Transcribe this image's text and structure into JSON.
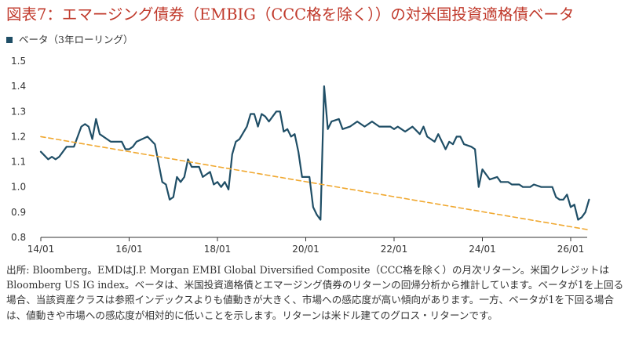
{
  "title": "図表7：エマージング債券（EMBIG（CCC格を除く））の対米国投資適格債ベータ",
  "legend": {
    "label": "ベータ（3年ローリング）",
    "color": "#1f4e66"
  },
  "footnote": "出所: Bloomberg。EMDはJ.P. Morgan EMBI Global Diversified Composite（CCC格を除く）の月次リターン。米国クレジットはBloomberg US IG index。ベータは、米国投資適格債とエマージング債券のリターンの回帰分析から推計しています。ベータが1を上回る場合、当該資産クラスは参照インデックスよりも値動きが大きく、市場への感応度が高い傾向があります。一方、ベータが1を下回る場合は、値動きや市場への感応度が相対的に低いことを示します。リターンは米ドル建てのグロス・リターンです。",
  "chart_data": {
    "type": "line",
    "xlabel": "",
    "ylabel": "",
    "x_range": [
      "2014-01",
      "2026-01"
    ],
    "ylim": [
      0.8,
      1.5
    ],
    "yticks": [
      "1.5",
      "1.4",
      "1.3",
      "1.2",
      "1.1",
      "1.0",
      "0.9",
      "0.8"
    ],
    "yticks_values": [
      1.5,
      1.4,
      1.3,
      1.2,
      1.1,
      1.0,
      0.9,
      0.8
    ],
    "xticks": [
      "14/01",
      "16/01",
      "18/01",
      "20/01",
      "22/01",
      "24/01",
      "26/01"
    ],
    "xticks_dates": [
      "2014-01",
      "2016-01",
      "2018-01",
      "2020-01",
      "2022-01",
      "2024-01",
      "2026-01"
    ],
    "grid": false,
    "series": [
      {
        "name": "ベータ（3年ローリング）",
        "color": "#1f4e66",
        "style": "solid",
        "points": [
          [
            "2014-01",
            1.14
          ],
          [
            "2014-03",
            1.11
          ],
          [
            "2014-04",
            1.12
          ],
          [
            "2014-05",
            1.11
          ],
          [
            "2014-06",
            1.12
          ],
          [
            "2014-08",
            1.16
          ],
          [
            "2014-10",
            1.16
          ],
          [
            "2014-12",
            1.24
          ],
          [
            "2015-01",
            1.25
          ],
          [
            "2015-02",
            1.24
          ],
          [
            "2015-03",
            1.19
          ],
          [
            "2015-04",
            1.27
          ],
          [
            "2015-05",
            1.21
          ],
          [
            "2015-08",
            1.18
          ],
          [
            "2015-11",
            1.18
          ],
          [
            "2015-12",
            1.15
          ],
          [
            "2016-01",
            1.15
          ],
          [
            "2016-02",
            1.16
          ],
          [
            "2016-03",
            1.18
          ],
          [
            "2016-06",
            1.2
          ],
          [
            "2016-08",
            1.17
          ],
          [
            "2016-10",
            1.02
          ],
          [
            "2016-11",
            1.01
          ],
          [
            "2016-12",
            0.95
          ],
          [
            "2017-01",
            0.96
          ],
          [
            "2017-02",
            1.04
          ],
          [
            "2017-03",
            1.02
          ],
          [
            "2017-04",
            1.04
          ],
          [
            "2017-05",
            1.11
          ],
          [
            "2017-06",
            1.08
          ],
          [
            "2017-08",
            1.08
          ],
          [
            "2017-09",
            1.04
          ],
          [
            "2017-11",
            1.06
          ],
          [
            "2017-12",
            1.01
          ],
          [
            "2018-01",
            1.02
          ],
          [
            "2018-02",
            1.0
          ],
          [
            "2018-03",
            1.02
          ],
          [
            "2018-04",
            0.99
          ],
          [
            "2018-05",
            1.13
          ],
          [
            "2018-06",
            1.18
          ],
          [
            "2018-07",
            1.19
          ],
          [
            "2018-09",
            1.24
          ],
          [
            "2018-10",
            1.29
          ],
          [
            "2018-11",
            1.29
          ],
          [
            "2018-12",
            1.24
          ],
          [
            "2019-01",
            1.29
          ],
          [
            "2019-02",
            1.28
          ],
          [
            "2019-03",
            1.26
          ],
          [
            "2019-05",
            1.3
          ],
          [
            "2019-06",
            1.3
          ],
          [
            "2019-07",
            1.22
          ],
          [
            "2019-08",
            1.23
          ],
          [
            "2019-09",
            1.2
          ],
          [
            "2019-10",
            1.21
          ],
          [
            "2019-11",
            1.14
          ],
          [
            "2019-12",
            1.04
          ],
          [
            "2020-01",
            1.04
          ],
          [
            "2020-02",
            1.04
          ],
          [
            "2020-03",
            0.92
          ],
          [
            "2020-04",
            0.89
          ],
          [
            "2020-05",
            0.87
          ],
          [
            "2020-06",
            1.4
          ],
          [
            "2020-07",
            1.23
          ],
          [
            "2020-08",
            1.26
          ],
          [
            "2020-10",
            1.27
          ],
          [
            "2020-11",
            1.23
          ],
          [
            "2021-01",
            1.24
          ],
          [
            "2021-03",
            1.26
          ],
          [
            "2021-05",
            1.24
          ],
          [
            "2021-07",
            1.26
          ],
          [
            "2021-09",
            1.24
          ],
          [
            "2021-12",
            1.24
          ],
          [
            "2022-01",
            1.23
          ],
          [
            "2022-02",
            1.24
          ],
          [
            "2022-04",
            1.22
          ],
          [
            "2022-05",
            1.23
          ],
          [
            "2022-06",
            1.24
          ],
          [
            "2022-08",
            1.21
          ],
          [
            "2022-09",
            1.24
          ],
          [
            "2022-10",
            1.2
          ],
          [
            "2022-11",
            1.19
          ],
          [
            "2022-12",
            1.18
          ],
          [
            "2023-01",
            1.21
          ],
          [
            "2023-03",
            1.15
          ],
          [
            "2023-04",
            1.18
          ],
          [
            "2023-05",
            1.17
          ],
          [
            "2023-06",
            1.2
          ],
          [
            "2023-07",
            1.2
          ],
          [
            "2023-08",
            1.17
          ],
          [
            "2023-10",
            1.16
          ],
          [
            "2023-11",
            1.15
          ],
          [
            "2023-12",
            1.0
          ],
          [
            "2024-01",
            1.07
          ],
          [
            "2024-03",
            1.03
          ],
          [
            "2024-05",
            1.04
          ],
          [
            "2024-06",
            1.02
          ],
          [
            "2024-08",
            1.02
          ],
          [
            "2024-09",
            1.01
          ],
          [
            "2024-11",
            1.01
          ],
          [
            "2024-12",
            1.0
          ],
          [
            "2025-02",
            1.0
          ],
          [
            "2025-03",
            1.01
          ],
          [
            "2025-05",
            1.0
          ],
          [
            "2025-08",
            1.0
          ],
          [
            "2025-09",
            0.96
          ],
          [
            "2025-10",
            0.95
          ],
          [
            "2025-11",
            0.95
          ],
          [
            "2025-12",
            0.97
          ],
          [
            "2026-01",
            0.92
          ],
          [
            "2026-02",
            0.93
          ],
          [
            "2026-03",
            0.87
          ],
          [
            "2026-04",
            0.88
          ],
          [
            "2026-05",
            0.9
          ],
          [
            "2026-06",
            0.95
          ]
        ]
      },
      {
        "name": "",
        "color": "#f0a830",
        "style": "dashed",
        "points": [
          [
            "2014-01",
            1.2
          ],
          [
            "2026-06",
            0.83
          ]
        ]
      }
    ]
  }
}
